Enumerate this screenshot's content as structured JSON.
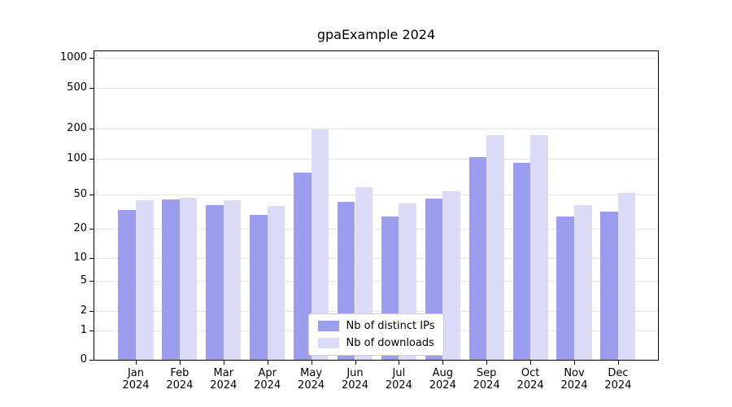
{
  "title": "gpaExample 2024",
  "chart_data": {
    "type": "bar",
    "title": "gpaExample 2024",
    "categories": [
      "Jan 2024",
      "Feb 2024",
      "Mar 2024",
      "Apr 2024",
      "May 2024",
      "Jun 2024",
      "Jul 2024",
      "Aug 2024",
      "Sep 2024",
      "Oct 2024",
      "Nov 2024",
      "Dec 2024"
    ],
    "series": [
      {
        "name": "Nb of distinct IPs",
        "color": "#9d9df0",
        "values": [
          33,
          44,
          38,
          29,
          77,
          41,
          28,
          45,
          103,
          93,
          28,
          32
        ]
      },
      {
        "name": "Nb of downloads",
        "color": "#dbdbf8",
        "values": [
          43,
          46,
          43,
          37,
          195,
          58,
          39,
          53,
          172,
          172,
          38,
          52
        ]
      }
    ],
    "yticks": [
      0,
      1,
      2,
      5,
      10,
      20,
      50,
      100,
      200,
      500,
      1000
    ],
    "yscale": "symlog",
    "ylim": [
      0,
      1000
    ],
    "xlabel": "",
    "ylabel": "",
    "grid": "horizontal",
    "legend_position": "lower center"
  }
}
